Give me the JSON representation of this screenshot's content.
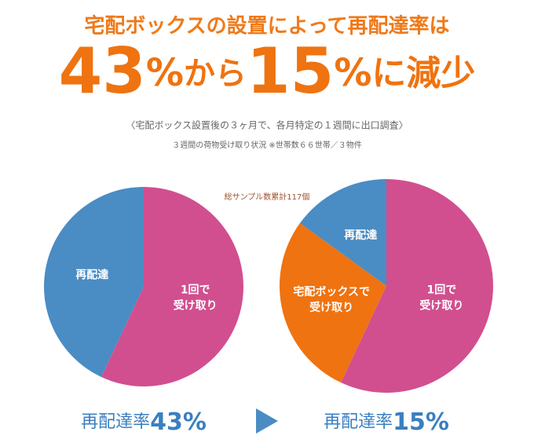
{
  "header": {
    "title": "宅配ボックスの設置によって再配達率は",
    "headline": [
      "43",
      "%",
      "から",
      "15",
      "%",
      "に減少"
    ],
    "notes": [
      "〈宅配ボックス設置後の３ヶ月で、各月特定の１週間に出口調査〉",
      "３週間の荷物受け取り状況 ※世帯数６６世帯／３物件"
    ],
    "sample": "総サンプル数累計117個"
  },
  "chart_data": [
    {
      "type": "pie",
      "categories": [
        [
          "1回で",
          "受け取り"
        ],
        [
          "再配達"
        ]
      ],
      "values": [
        57,
        43
      ],
      "colors": [
        "#d14f8f",
        "#4a8cc4"
      ],
      "footer_label": "再配達率",
      "footer_value": "43%"
    },
    {
      "type": "pie",
      "categories": [
        [
          "1回で",
          "受け取り"
        ],
        [
          "宅配ボックスで",
          "受け取り"
        ],
        [
          "再配達"
        ]
      ],
      "values": [
        57,
        28,
        15
      ],
      "colors": [
        "#d14f8f",
        "#ef7310",
        "#4a8cc4"
      ],
      "footer_label": "再配達率",
      "footer_value": "15%"
    }
  ]
}
